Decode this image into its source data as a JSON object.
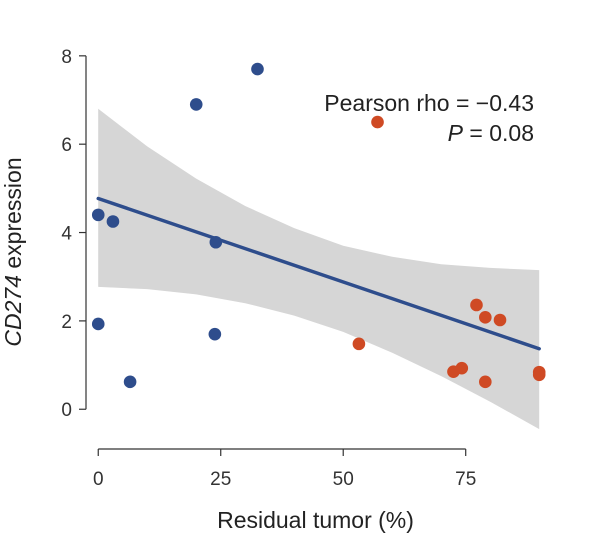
{
  "chart_data": {
    "type": "scatter",
    "xlabel": "Residual tumor (%)",
    "ylabel_italic": "CD274",
    "ylabel_rest": " expression",
    "xlim": [
      -2.5,
      92
    ],
    "ylim": [
      -0.9,
      8.2
    ],
    "xticks": [
      0,
      25,
      50,
      75
    ],
    "xtick_labels": [
      "0",
      "25",
      "50",
      "75"
    ],
    "yticks": [
      0,
      2,
      4,
      6,
      8
    ],
    "ytick_labels": [
      "0",
      "2",
      "4",
      "6",
      "8"
    ],
    "grid": false,
    "colors": {
      "series_blue": "#2e4d8c",
      "series_red": "#cf4a24",
      "fit_line": "#2e4d8c",
      "confidence_band": "#d6d6d6"
    },
    "series": [
      {
        "color": "#2e4d8c",
        "points": [
          {
            "x": 0.0,
            "y": 4.4
          },
          {
            "x": 3.0,
            "y": 4.25
          },
          {
            "x": 0.0,
            "y": 1.93
          },
          {
            "x": 6.5,
            "y": 0.62
          },
          {
            "x": 20.0,
            "y": 6.9
          },
          {
            "x": 24.0,
            "y": 3.78
          },
          {
            "x": 23.8,
            "y": 1.7
          },
          {
            "x": 32.5,
            "y": 7.7
          }
        ]
      },
      {
        "color": "#cf4a24",
        "points": [
          {
            "x": 57.0,
            "y": 6.5
          },
          {
            "x": 53.2,
            "y": 1.48
          },
          {
            "x": 72.5,
            "y": 0.85
          },
          {
            "x": 74.2,
            "y": 0.93
          },
          {
            "x": 77.2,
            "y": 2.36
          },
          {
            "x": 79.0,
            "y": 2.08
          },
          {
            "x": 82.0,
            "y": 2.02
          },
          {
            "x": 79.0,
            "y": 0.62
          },
          {
            "x": 90.0,
            "y": 0.84
          },
          {
            "x": 90.0,
            "y": 0.78
          }
        ]
      }
    ],
    "fit_line": {
      "x": [
        0,
        90
      ],
      "y": [
        4.77,
        1.37
      ]
    },
    "confidence_band": {
      "x": [
        0,
        10,
        20,
        30,
        40,
        50,
        60,
        70,
        80,
        90
      ],
      "upper": [
        6.8,
        5.95,
        5.22,
        4.6,
        4.1,
        3.7,
        3.45,
        3.28,
        3.2,
        3.15
      ],
      "lower": [
        2.77,
        2.72,
        2.6,
        2.4,
        2.12,
        1.75,
        1.28,
        0.75,
        0.17,
        -0.45
      ]
    },
    "annotation": {
      "line1": "Pearson rho = −0.43",
      "line2_italic": "P",
      "line2_rest": " = 0.08",
      "placement": "top-right"
    }
  }
}
